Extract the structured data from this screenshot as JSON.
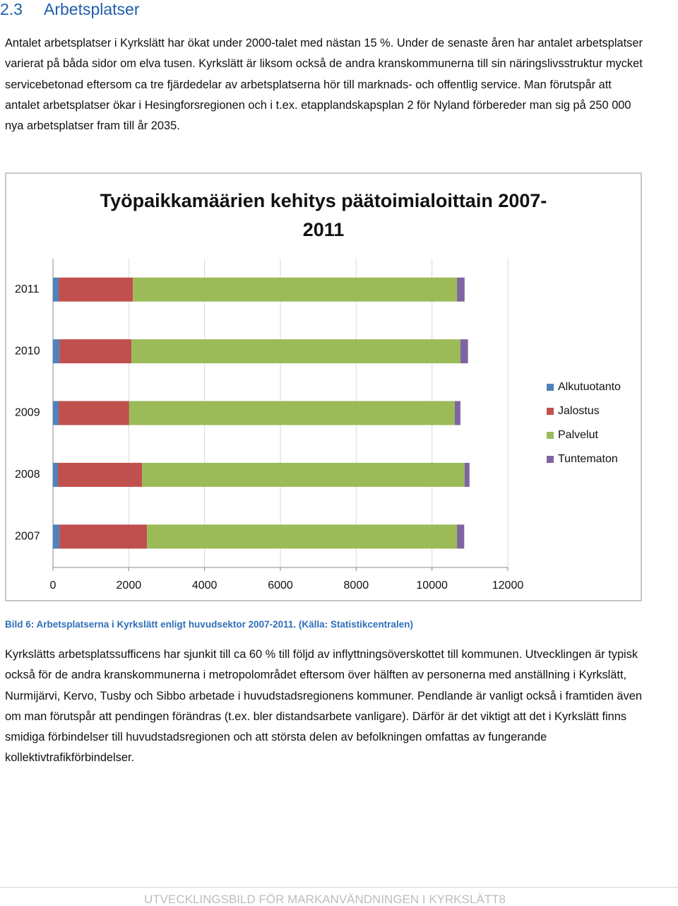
{
  "heading": {
    "number": "2.3",
    "title": "Arbetsplatser"
  },
  "paragraphs": [
    "Antalet arbetsplatser i Kyrkslätt har ökat under 2000-talet med nästan 15 %. Under de senaste åren har antalet arbetsplatser varierat på båda sidor om elva tusen. Kyrkslätt är liksom också de andra kranskommunerna till sin näringslivsstruktur mycket servicebetonad eftersom ca tre fjärdedelar av arbetsplatserna hör till marknads- och offentlig service. Man förutspår att antalet arbetsplatser ökar i Hesingforsregionen och i t.ex. etapplandskapsplan 2 för Nyland förbereder man sig på 250 000 nya arbetsplatser fram till år 2035.",
    "Kyrkslätts arbetsplatssufficens har sjunkit till ca 60 % till följd av inflyttningsöverskottet till kommunen. Utvecklingen är typisk också för de andra kranskommunerna i metropolområdet eftersom över hälften av personerna med anställning i Kyrkslätt, Nurmijärvi, Kervo, Tusby och Sibbo arbetade i huvudstadsregionens kommuner. Pendlande är vanligt också i framtiden även om man förutspår att pendingen förändras (t.ex. bler distandsarbete vanligare). Därför är det viktigt att det i Kyrkslätt finns smidiga förbindelser till huvudstadsregionen och att största delen av befolkningen omfattas av fungerande kollektivtrafikförbindelser."
  ],
  "chart_data": {
    "type": "stacked-bar-horizontal",
    "title": "Työpaikkamäärien kehitys päätoimialoittain 2007-2011",
    "categories": [
      "2007",
      "2008",
      "2009",
      "2010",
      "2011"
    ],
    "series": [
      {
        "name": "Alkutuotanto",
        "color": "#4f81bd",
        "values": [
          170,
          130,
          150,
          170,
          150
        ]
      },
      {
        "name": "Jalostus",
        "color": "#c0504d",
        "values": [
          2310,
          2220,
          1860,
          1900,
          1960
        ]
      },
      {
        "name": "Palvelut",
        "color": "#9bbb59",
        "values": [
          8180,
          8510,
          8590,
          8680,
          8550
        ]
      },
      {
        "name": "Tuntematon",
        "color": "#8064a2",
        "values": [
          190,
          130,
          150,
          200,
          200
        ]
      }
    ],
    "xlim": [
      0,
      12000
    ],
    "xticks": [
      0,
      2000,
      4000,
      6000,
      8000,
      10000,
      12000
    ],
    "grid": true,
    "legend": "right"
  },
  "caption": "Bild 6: Arbetsplatserna i Kyrkslätt enligt huvudsektor 2007-2011. (Källa: Statistikcentralen)",
  "footer": "UTVECKLINGSBILD FÖR MARKANVÄNDNINGEN I KYRKSLÄTT8"
}
